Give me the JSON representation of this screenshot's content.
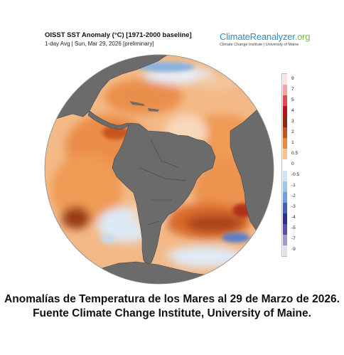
{
  "map": {
    "title": "OISST SST Anomaly (°C) [1971-2000 baseline]",
    "subtitle": "1-day Avg | Sun, Mar 29, 2026 [preliminary]"
  },
  "brand": {
    "name_main": "ClimateReanalyzer",
    "name_suffix": ".org",
    "subtitle": "Climate Change Institute | University of Maine",
    "color_main": "#2f8dbd",
    "color_suffix": "#7bb843"
  },
  "legend": {
    "labels": [
      "9",
      "7",
      "5",
      "4",
      "3",
      "2",
      "1",
      "0.5",
      "0",
      "-0.5",
      "-1",
      "-2",
      "-3",
      "-4",
      "-5",
      "-7",
      "-9"
    ],
    "colors": [
      "#fbe3e3",
      "#f4a3a3",
      "#e04a4a",
      "#b5131f",
      "#8b2a0a",
      "#c4561d",
      "#e8883a",
      "#f6c48f",
      "#ffffff",
      "#cfe3f4",
      "#9cc6ea",
      "#6f9fd6",
      "#3f62b8",
      "#2b2f8f",
      "#5e4ea8",
      "#a596cc",
      "#e6ddef"
    ]
  },
  "caption": {
    "line1": "Anomalías de Temperatura de los Mares al 29 de Marzo de 2026.",
    "line2": "Fuente Climate Change Institute, University of Maine."
  }
}
